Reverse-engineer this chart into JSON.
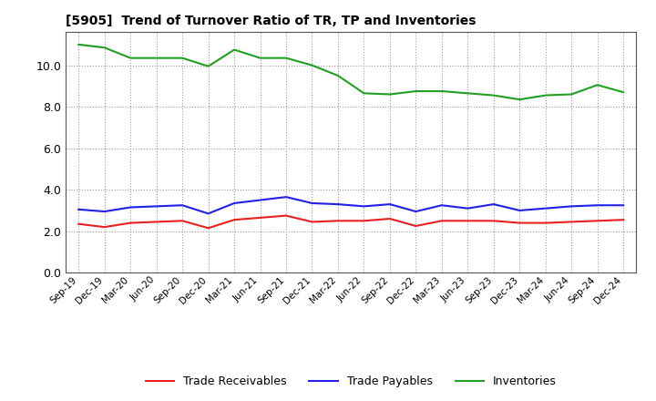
{
  "title": "[5905]  Trend of Turnover Ratio of TR, TP and Inventories",
  "x_labels": [
    "Sep-19",
    "Dec-19",
    "Mar-20",
    "Jun-20",
    "Sep-20",
    "Dec-20",
    "Mar-21",
    "Jun-21",
    "Sep-21",
    "Dec-21",
    "Mar-22",
    "Jun-22",
    "Sep-22",
    "Dec-22",
    "Mar-23",
    "Jun-23",
    "Sep-23",
    "Dec-23",
    "Mar-24",
    "Jun-24",
    "Sep-24",
    "Dec-24"
  ],
  "trade_receivables": [
    2.35,
    2.2,
    2.4,
    2.45,
    2.5,
    2.15,
    2.55,
    2.65,
    2.75,
    2.45,
    2.5,
    2.5,
    2.6,
    2.25,
    2.5,
    2.5,
    2.5,
    2.4,
    2.4,
    2.45,
    2.5,
    2.55
  ],
  "trade_payables": [
    3.05,
    2.95,
    3.15,
    3.2,
    3.25,
    2.85,
    3.35,
    3.5,
    3.65,
    3.35,
    3.3,
    3.2,
    3.3,
    2.95,
    3.25,
    3.1,
    3.3,
    3.0,
    3.1,
    3.2,
    3.25,
    3.25
  ],
  "inventories": [
    11.0,
    10.85,
    10.35,
    10.35,
    10.35,
    9.95,
    10.75,
    10.35,
    10.35,
    10.0,
    9.5,
    8.65,
    8.6,
    8.75,
    8.75,
    8.65,
    8.55,
    8.35,
    8.55,
    8.6,
    9.05,
    8.7
  ],
  "line_color_tr": "#e82020",
  "line_color_tp": "#2020e8",
  "line_color_inv": "#20a020",
  "ylim": [
    0.0,
    11.6
  ],
  "yticks": [
    0.0,
    2.0,
    4.0,
    6.0,
    8.0,
    10.0
  ],
  "background_color": "#ffffff",
  "grid_color": "#999999",
  "legend_labels": [
    "Trade Receivables",
    "Trade Payables",
    "Inventories"
  ]
}
